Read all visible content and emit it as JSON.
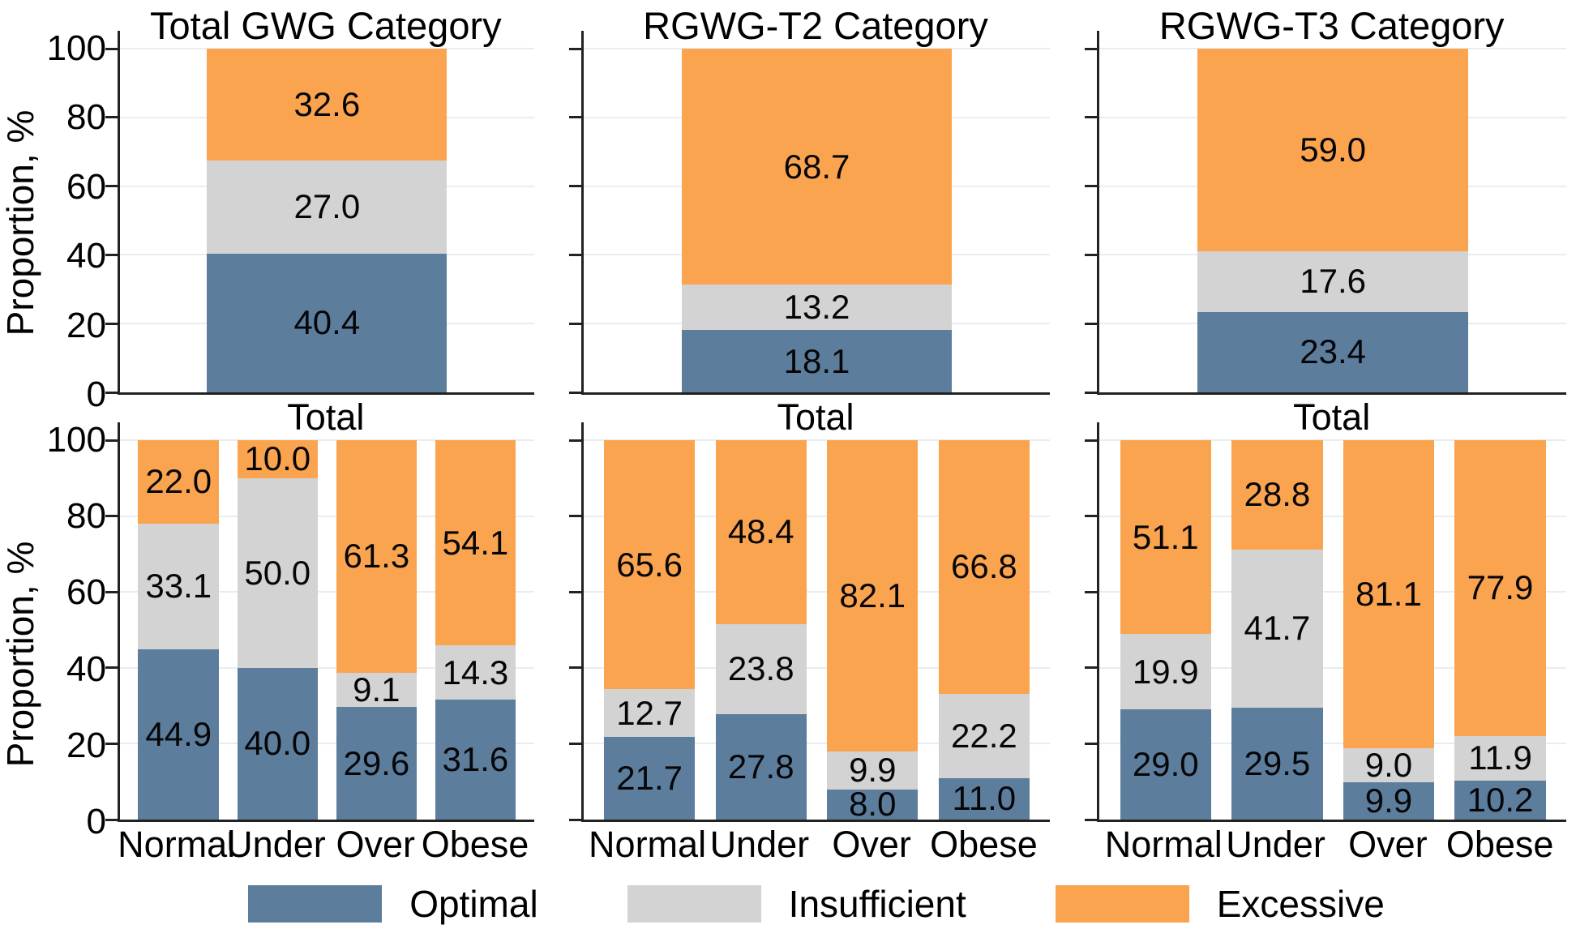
{
  "figure": {
    "ylabel": "Proportion, %",
    "yticks": [
      0,
      20,
      40,
      60,
      80,
      100
    ],
    "ylim": [
      0,
      100
    ],
    "grid": true,
    "gridline_color": "#e8edf0",
    "axis_color": "#222222",
    "colors": {
      "Optimal": "#5c7d9c",
      "Insufficient": "#d3d3d3",
      "Excessive": "#fba44f"
    }
  },
  "legend": {
    "position": "bottom",
    "entries": [
      {
        "label": "Optimal",
        "color": "#5c7d9c"
      },
      {
        "label": "Insufficient",
        "color": "#d3d3d3"
      },
      {
        "label": "Excessive",
        "color": "#fba44f"
      }
    ]
  },
  "chart_data": [
    {
      "type": "bar",
      "stacked": true,
      "title": "Total GWG Category",
      "categories": [
        "Total"
      ],
      "show_ytick_labels": true,
      "series": [
        {
          "name": "Optimal",
          "values": [
            40.4
          ]
        },
        {
          "name": "Insufficient",
          "values": [
            27.0
          ]
        },
        {
          "name": "Excessive",
          "values": [
            32.6
          ]
        }
      ]
    },
    {
      "type": "bar",
      "stacked": true,
      "title": "RGWG-T2 Category",
      "categories": [
        "Total"
      ],
      "show_ytick_labels": false,
      "series": [
        {
          "name": "Optimal",
          "values": [
            18.1
          ]
        },
        {
          "name": "Insufficient",
          "values": [
            13.2
          ]
        },
        {
          "name": "Excessive",
          "values": [
            68.7
          ]
        }
      ]
    },
    {
      "type": "bar",
      "stacked": true,
      "title": "RGWG-T3 Category",
      "categories": [
        "Total"
      ],
      "show_ytick_labels": false,
      "series": [
        {
          "name": "Optimal",
          "values": [
            23.4
          ]
        },
        {
          "name": "Insufficient",
          "values": [
            17.6
          ]
        },
        {
          "name": "Excessive",
          "values": [
            59.0
          ]
        }
      ]
    },
    {
      "type": "bar",
      "stacked": true,
      "title": "",
      "categories": [
        "Normal",
        "Under",
        "Over",
        "Obese"
      ],
      "show_ytick_labels": true,
      "series": [
        {
          "name": "Optimal",
          "values": [
            44.9,
            40.0,
            29.6,
            31.6
          ]
        },
        {
          "name": "Insufficient",
          "values": [
            33.1,
            50.0,
            9.1,
            14.3
          ]
        },
        {
          "name": "Excessive",
          "values": [
            22.0,
            10.0,
            61.3,
            54.1
          ]
        }
      ]
    },
    {
      "type": "bar",
      "stacked": true,
      "title": "",
      "categories": [
        "Normal",
        "Under",
        "Over",
        "Obese"
      ],
      "show_ytick_labels": false,
      "series": [
        {
          "name": "Optimal",
          "values": [
            21.7,
            27.8,
            8.0,
            11.0
          ]
        },
        {
          "name": "Insufficient",
          "values": [
            12.7,
            23.8,
            9.9,
            22.2
          ]
        },
        {
          "name": "Excessive",
          "values": [
            65.6,
            48.4,
            82.1,
            66.8
          ]
        }
      ]
    },
    {
      "type": "bar",
      "stacked": true,
      "title": "",
      "categories": [
        "Normal",
        "Under",
        "Over",
        "Obese"
      ],
      "show_ytick_labels": false,
      "series": [
        {
          "name": "Optimal",
          "values": [
            29.0,
            29.5,
            9.9,
            10.2
          ]
        },
        {
          "name": "Insufficient",
          "values": [
            19.9,
            41.7,
            9.0,
            11.9
          ]
        },
        {
          "name": "Excessive",
          "values": [
            51.1,
            28.8,
            81.1,
            77.9
          ]
        }
      ]
    }
  ]
}
